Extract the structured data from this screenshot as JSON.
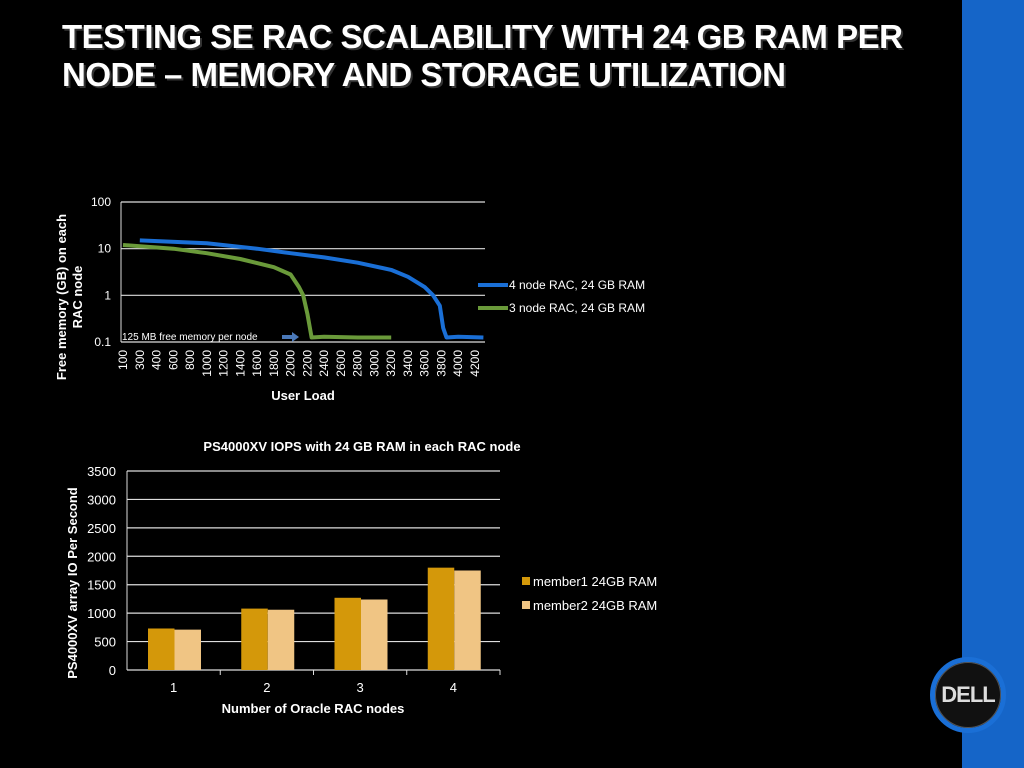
{
  "title": "TESTING SE RAC SCALABILITY WITH 24 GB RAM PER NODE – MEMORY AND STORAGE UTILIZATION",
  "logo": "DELL",
  "chart_data": [
    {
      "type": "line",
      "title": "",
      "xlabel": "User Load",
      "ylabel": "Free memory (GB) on each RAC node",
      "yscale": "log",
      "ylim": [
        0.1,
        100
      ],
      "yticks": [
        "100",
        "10",
        "1",
        "0.1"
      ],
      "categories": [
        "100",
        "300",
        "400",
        "600",
        "800",
        "1000",
        "1200",
        "1400",
        "1600",
        "1800",
        "2000",
        "2200",
        "2400",
        "2600",
        "2800",
        "3000",
        "3200",
        "3400",
        "3600",
        "3800",
        "4000",
        "4200"
      ],
      "annotation": "125 MB free memory per node",
      "grid": true,
      "legend": "right",
      "series": [
        {
          "name": "4 node RAC, 24 GB RAM",
          "color": "#1a6fd6",
          "x": [
            300,
            1000,
            1600,
            2000,
            2400,
            2800,
            3200,
            3400,
            3600,
            3700,
            3780,
            3820,
            3860,
            4000,
            4300
          ],
          "y": [
            15,
            13,
            10,
            8,
            6.5,
            5,
            3.5,
            2.5,
            1.5,
            1,
            0.6,
            0.2,
            0.125,
            0.13,
            0.125
          ]
        },
        {
          "name": "3 node RAC, 24 GB RAM",
          "color": "#6a9a3a",
          "x": [
            100,
            600,
            1000,
            1400,
            1800,
            2000,
            2100,
            2150,
            2200,
            2250,
            2400,
            2800,
            3200
          ],
          "y": [
            12,
            10,
            8,
            6,
            4,
            2.8,
            1.5,
            1,
            0.4,
            0.125,
            0.13,
            0.125,
            0.125
          ]
        }
      ]
    },
    {
      "type": "bar",
      "title": "PS4000XV IOPS with 24 GB RAM in each RAC node",
      "xlabel": "Number of Oracle RAC nodes",
      "ylabel": "PS4000XV  array IO Per Second",
      "ylim": [
        0,
        3500
      ],
      "yticks": [
        "3500",
        "3000",
        "2500",
        "2000",
        "1500",
        "1000",
        "500",
        "0"
      ],
      "categories": [
        "1",
        "2",
        "3",
        "4"
      ],
      "grid": true,
      "legend": "right",
      "series": [
        {
          "name": "member1 24GB RAM",
          "color": "#d4980a",
          "values": [
            730,
            1080,
            1270,
            1800
          ]
        },
        {
          "name": "member2 24GB RAM",
          "color": "#f0c584",
          "values": [
            710,
            1060,
            1240,
            1750
          ]
        }
      ]
    }
  ]
}
